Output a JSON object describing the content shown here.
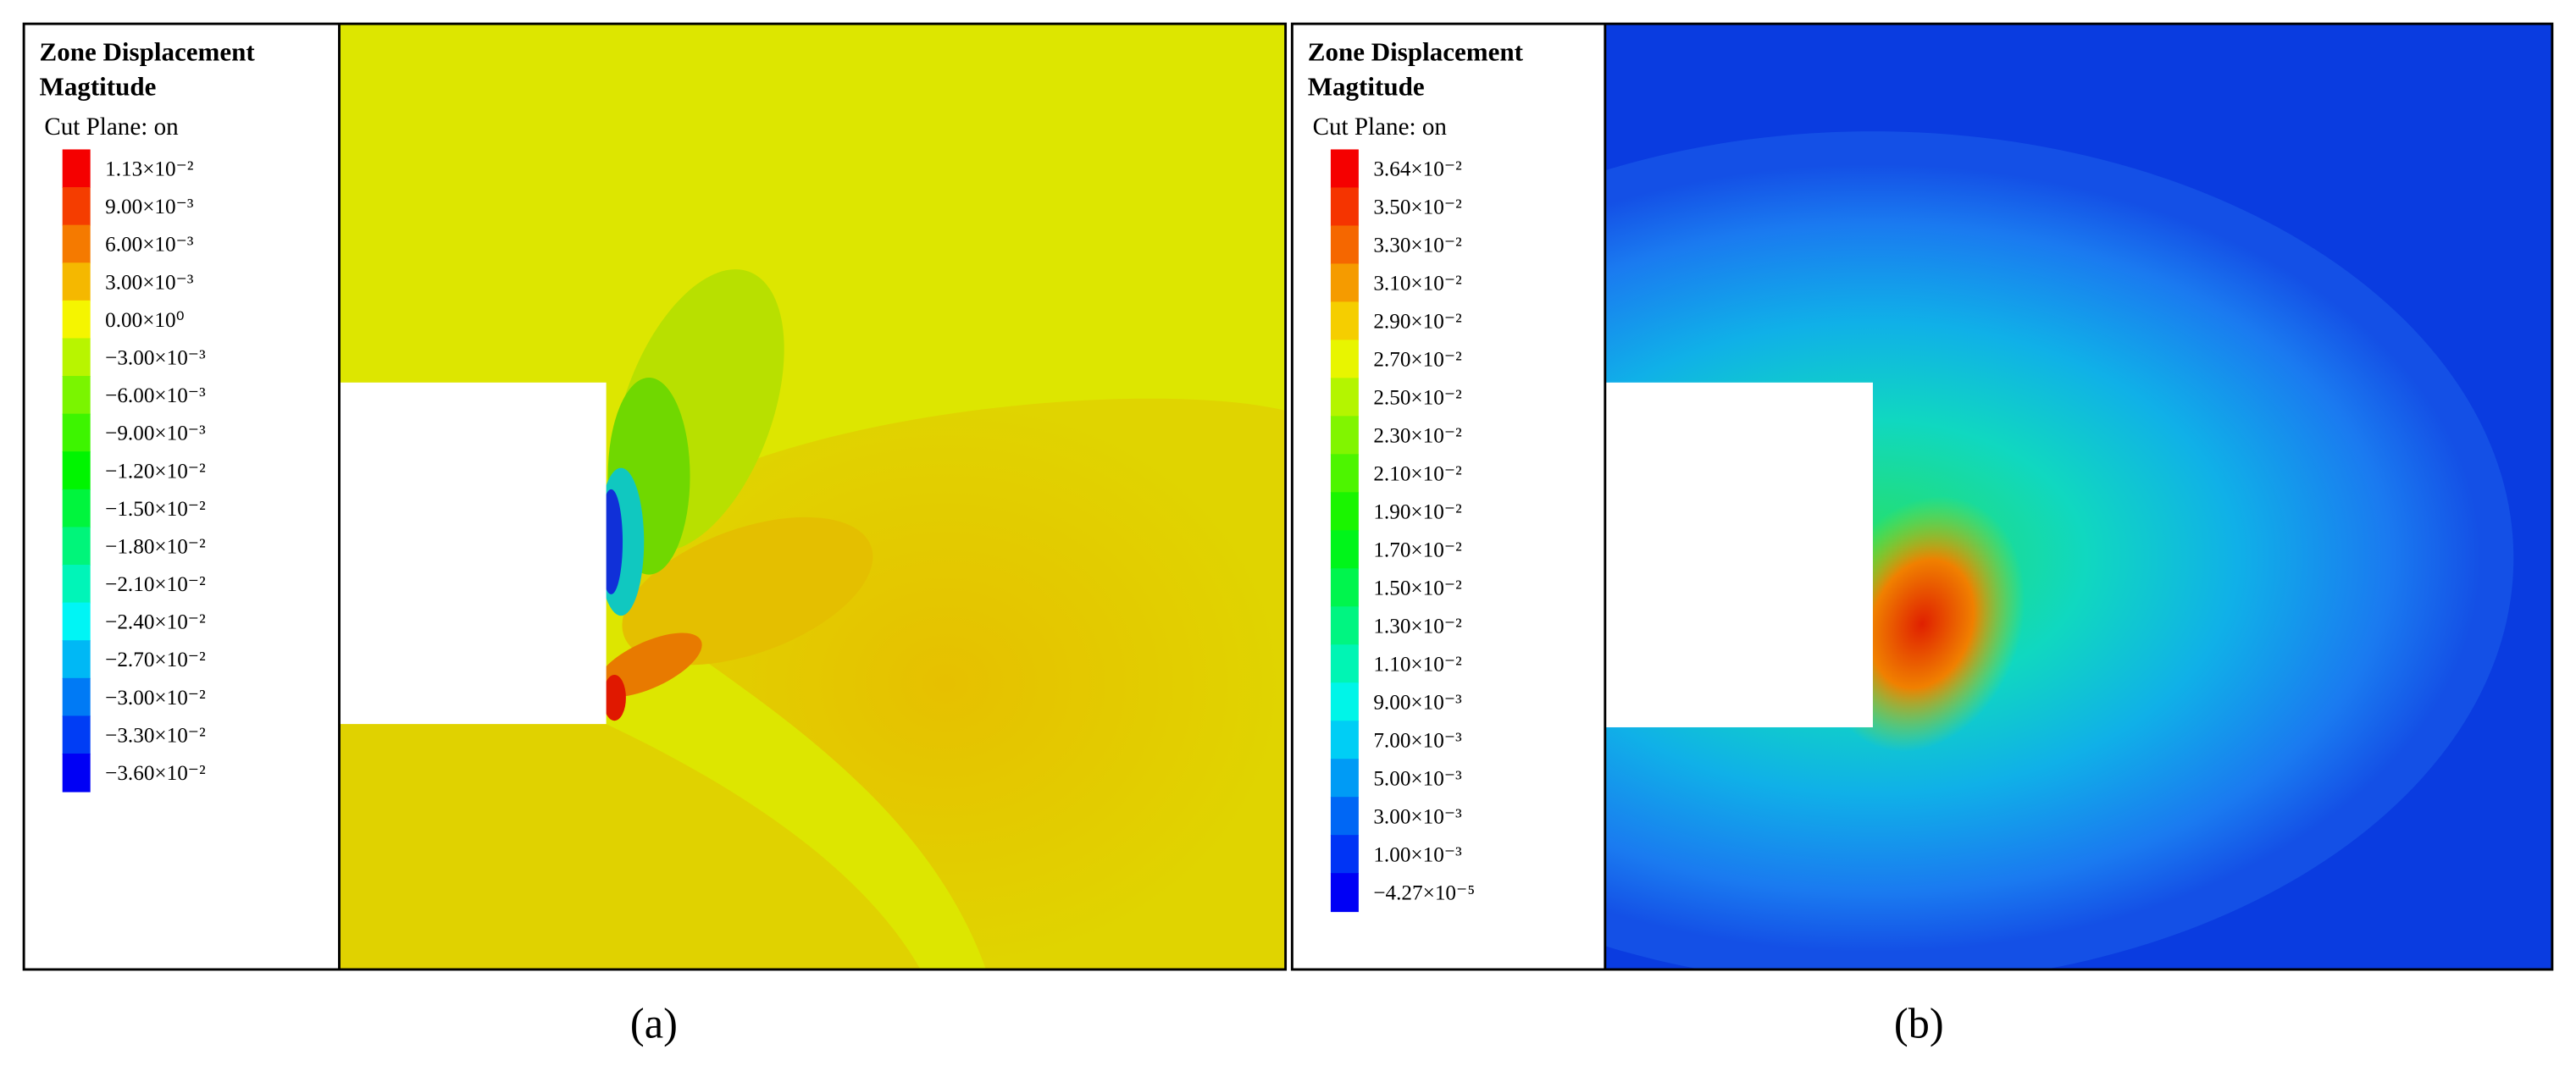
{
  "panels": [
    {
      "title": [
        "Zone Displacement",
        "Magtitude"
      ],
      "subtitle": "Cut Plane: on",
      "legend_labels": [
        "1.13×10⁻²",
        "9.00×10⁻³",
        "6.00×10⁻³",
        "3.00×10⁻³",
        "0.00×10⁰",
        "−3.00×10⁻³",
        "−6.00×10⁻³",
        "−9.00×10⁻³",
        "−1.20×10⁻²",
        "−1.50×10⁻²",
        "−1.80×10⁻²",
        "−2.10×10⁻²",
        "−2.40×10⁻²",
        "−2.70×10⁻²",
        "−3.00×10⁻²",
        "−3.30×10⁻²",
        "−3.60×10⁻²"
      ],
      "caption": "(a)"
    },
    {
      "title": [
        "Zone Displacement",
        "Magtitude"
      ],
      "subtitle": "Cut Plane: on",
      "legend_labels": [
        "3.64×10⁻²",
        "3.50×10⁻²",
        "3.30×10⁻²",
        "3.10×10⁻²",
        "2.90×10⁻²",
        "2.70×10⁻²",
        "2.50×10⁻²",
        "2.30×10⁻²",
        "2.10×10⁻²",
        "1.90×10⁻²",
        "1.70×10⁻²",
        "1.50×10⁻²",
        "1.30×10⁻²",
        "1.10×10⁻²",
        "9.00×10⁻³",
        "7.00×10⁻³",
        "5.00×10⁻³",
        "3.00×10⁻³",
        "1.00×10⁻³",
        "−4.27×10⁻⁵"
      ],
      "caption": "(b)"
    }
  ]
}
